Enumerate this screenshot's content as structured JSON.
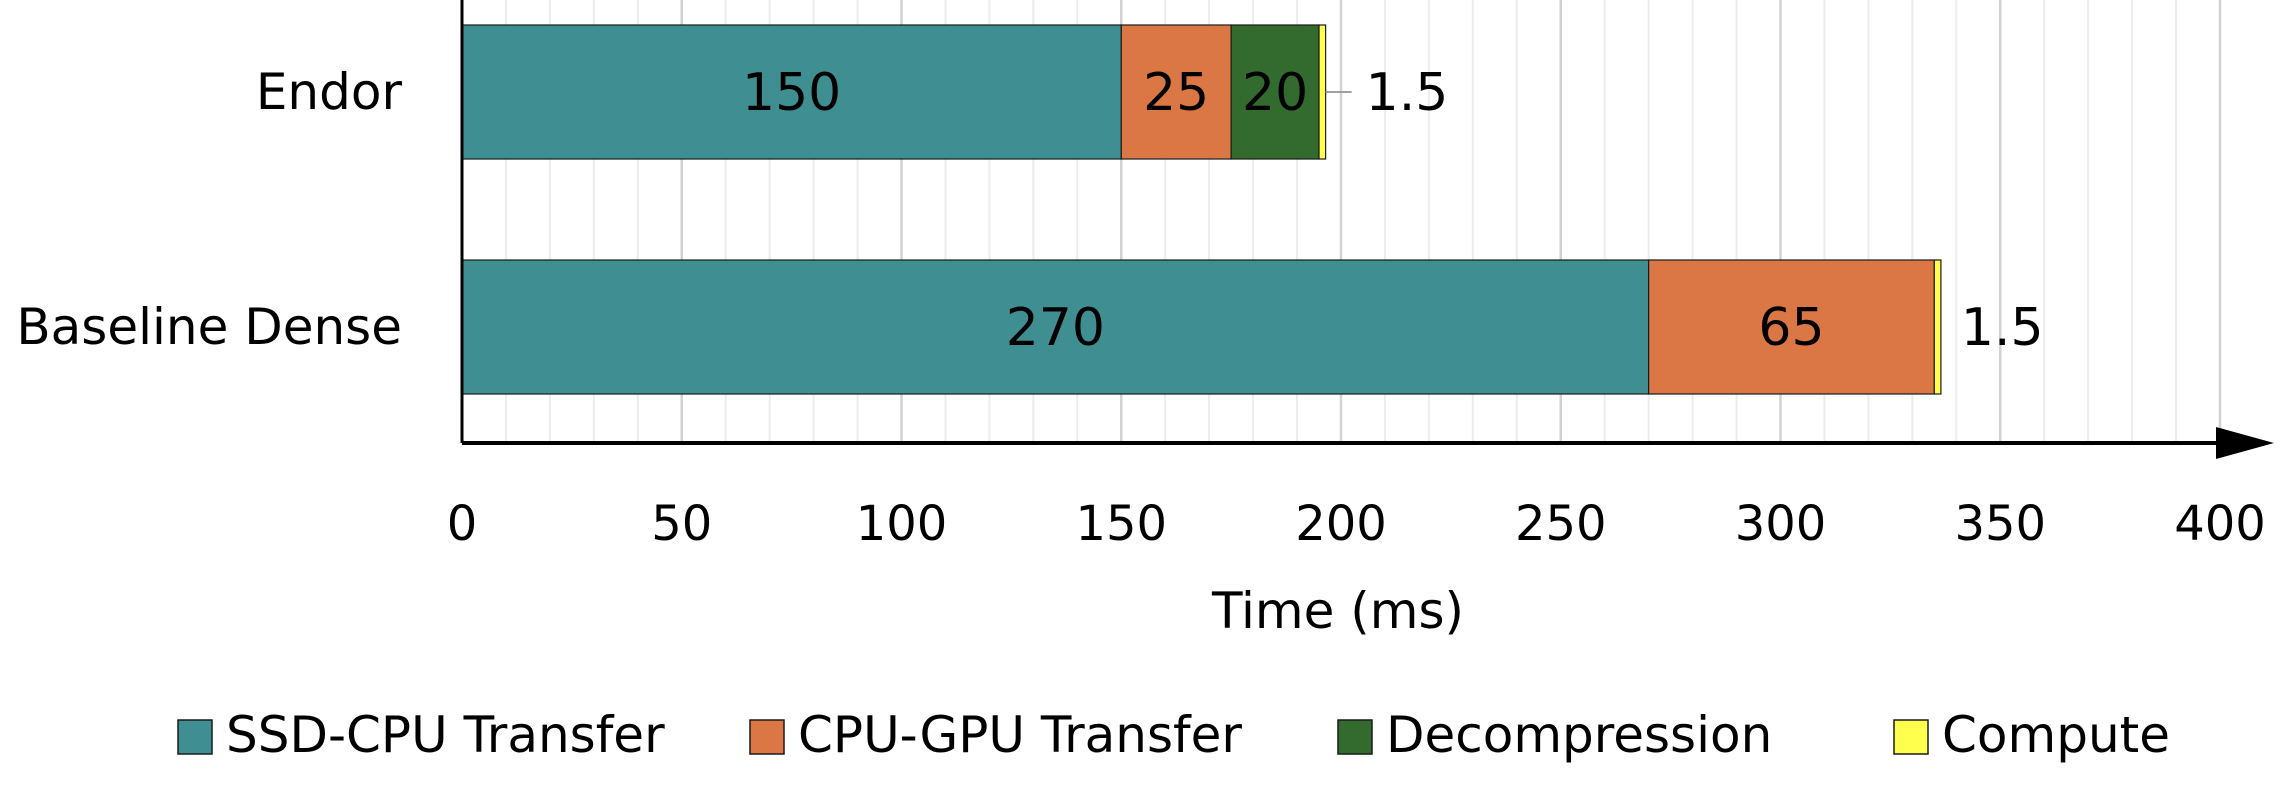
{
  "chart_data": {
    "type": "bar",
    "orientation": "horizontal",
    "stacked": true,
    "categories": [
      "Endor",
      "Baseline Dense"
    ],
    "series": [
      {
        "name": "SSD-CPU Transfer",
        "color": "#3f8e92",
        "values": [
          150,
          270
        ]
      },
      {
        "name": "CPU-GPU Transfer",
        "color": "#db7744",
        "values": [
          25,
          65
        ]
      },
      {
        "name": "Decompression",
        "color": "#336a2e",
        "values": [
          20,
          0
        ]
      },
      {
        "name": "Compute",
        "color": "#ffff4d",
        "values": [
          1.5,
          1.5
        ]
      }
    ],
    "data_labels": [
      [
        "150",
        "25",
        "20",
        "1.5"
      ],
      [
        "270",
        "65",
        "",
        "1.5"
      ]
    ],
    "xlabel": "Time (ms)",
    "xlim": [
      0,
      400
    ],
    "xticks": [
      0,
      50,
      100,
      150,
      200,
      250,
      300,
      350,
      400
    ],
    "xtick_labels": [
      "0",
      "50",
      "100",
      "150",
      "200",
      "250",
      "300",
      "350",
      "400"
    ],
    "grid": "vertical",
    "legend": "bottom"
  }
}
